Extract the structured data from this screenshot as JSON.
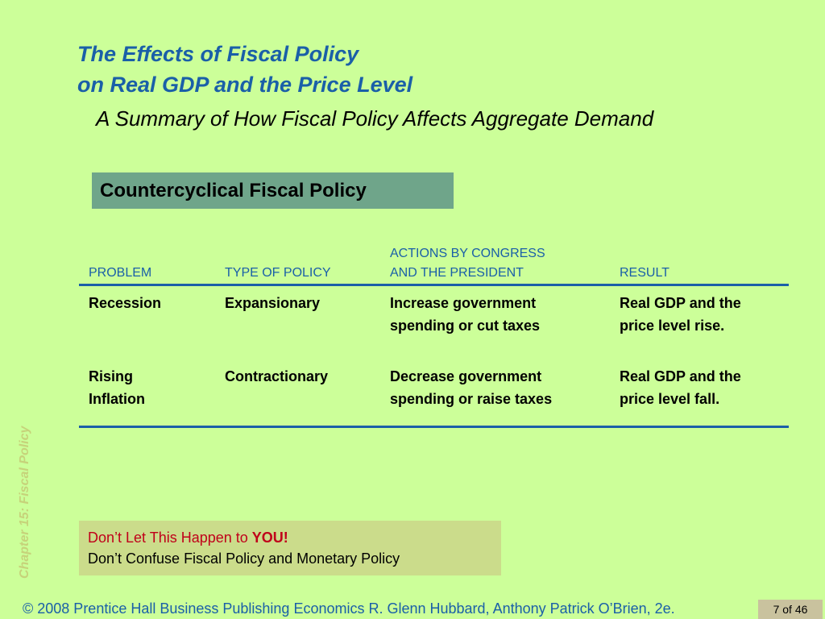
{
  "slide": {
    "title_line1": "The Effects of Fiscal Policy",
    "title_line2": "on Real GDP and the Price Level",
    "subtitle": "A Summary of How Fiscal Policy Affects Aggregate Demand",
    "section_label": "Countercyclical Fiscal Policy"
  },
  "table": {
    "headers": {
      "problem": "PROBLEM",
      "type": "TYPE OF POLICY",
      "actions_line1": "ACTIONS BY CONGRESS",
      "actions_line2": "AND THE PRESIDENT",
      "result": "RESULT"
    },
    "rows": [
      {
        "problem_line1": "Recession",
        "problem_line2": "",
        "type": "Expansionary",
        "actions_line1": "Increase government",
        "actions_line2": "spending or cut taxes",
        "result_line1": "Real GDP and the",
        "result_line2": "price level rise."
      },
      {
        "problem_line1": "Rising",
        "problem_line2": "Inflation",
        "type": "Contractionary",
        "actions_line1": "Decrease government",
        "actions_line2": "spending or raise taxes",
        "result_line1": "Real GDP and the",
        "result_line2": "price level fall."
      }
    ]
  },
  "sidebar": {
    "chapter_label": "Chapter 15:  Fiscal Policy"
  },
  "tip": {
    "line1_prefix": "Don’t Let This Happen to ",
    "line1_emphasis": "YOU!",
    "line2": "Don’t Confuse Fiscal Policy and Monetary Policy"
  },
  "footer": {
    "credit": "© 2008 Prentice Hall Business Publishing   Economics  R. Glenn Hubbard, Anthony Patrick O’Brien, 2e.",
    "page": "7 of 46"
  },
  "colors": {
    "background": "#ccff99",
    "title_blue": "#1a5fa8",
    "section_box": "#6fa58a",
    "tip_box": "#cbdc8b",
    "tip_red": "#c0001a"
  }
}
